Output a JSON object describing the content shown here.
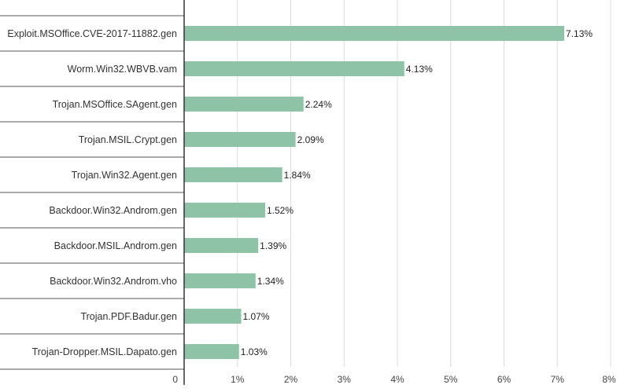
{
  "chart_data": {
    "type": "bar",
    "orientation": "horizontal",
    "categories": [
      "Exploit.MSOffice.CVE-2017-11882.gen",
      "Worm.Win32.WBVB.vam",
      "Trojan.MSOffice.SAgent.gen",
      "Trojan.MSIL.Crypt.gen",
      "Trojan.Win32.Agent.gen",
      "Backdoor.Win32.Androm.gen",
      "Backdoor.MSIL.Androm.gen",
      "Backdoor.Win32.Androm.vho",
      "Trojan.PDF.Badur.gen",
      "Trojan-Dropper.MSIL.Dapato.gen"
    ],
    "values": [
      7.13,
      4.13,
      2.24,
      2.09,
      1.84,
      1.52,
      1.39,
      1.34,
      1.07,
      1.03
    ],
    "value_labels": [
      "7.13%",
      "4.13%",
      "2.24%",
      "2.09%",
      "1.84%",
      "1.52%",
      "1.39%",
      "1.34%",
      "1.07%",
      "1.03%"
    ],
    "xlim": [
      0,
      8
    ],
    "x_ticks": [
      0,
      1,
      2,
      3,
      4,
      5,
      6,
      7,
      8
    ],
    "x_tick_labels": [
      "0",
      "1%",
      "2%",
      "3%",
      "4%",
      "5%",
      "6%",
      "7%",
      "8%"
    ],
    "grid": "vertical",
    "bar_color": "#8fc3a7",
    "title": "",
    "xlabel": "",
    "ylabel": ""
  }
}
